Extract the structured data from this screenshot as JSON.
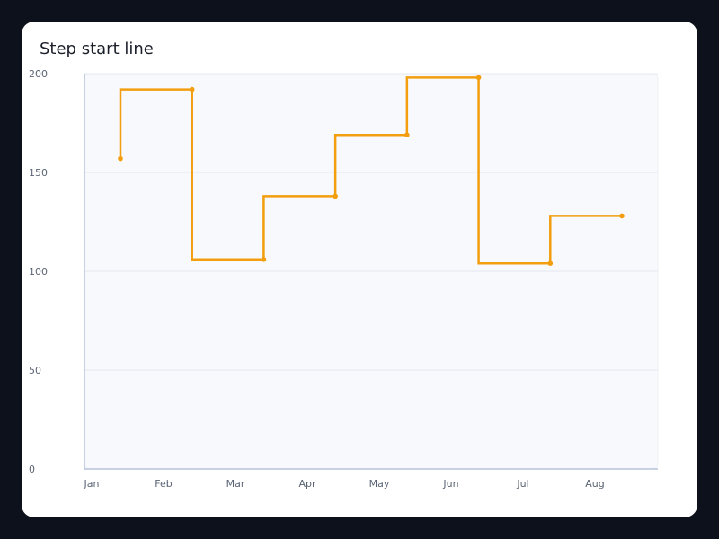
{
  "colors": {
    "page_bg": "#0d111c",
    "card_bg": "#ffffff",
    "plot_bg": "#f8f9fc",
    "grid": "#e4e8f0",
    "axis": "#b7c3d8",
    "series": "#f29e0f"
  },
  "chart_data": {
    "type": "line",
    "step": "start",
    "title": "Step start line",
    "xlabel": "",
    "ylabel": "",
    "categories": [
      "Jan",
      "Feb",
      "Mar",
      "Apr",
      "May",
      "Jun",
      "Jul",
      "Aug"
    ],
    "x_tick_labels": [
      "Jan",
      "Feb",
      "Mar",
      "Apr",
      "May",
      "Jun",
      "Jul",
      "Aug"
    ],
    "y_ticks": [
      0,
      50,
      100,
      150,
      200
    ],
    "ylim": [
      0,
      200
    ],
    "grid": true,
    "legend": "none",
    "series": [
      {
        "values": [
          157,
          192,
          106,
          138,
          169,
          198,
          104,
          128
        ]
      }
    ]
  }
}
